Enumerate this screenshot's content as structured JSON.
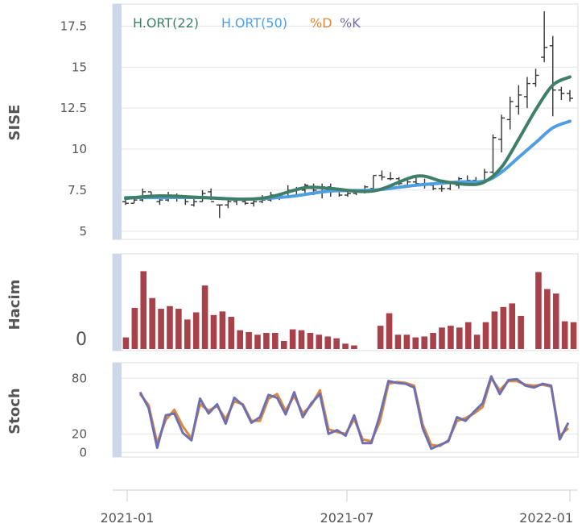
{
  "chart_data": {
    "type": "line",
    "x_ticks": [
      "2021-01",
      "2021-07",
      "2022-01"
    ],
    "colors": {
      "ort22": "#3f7f6a",
      "ort50": "#4f9ee0",
      "d": "#d9893f",
      "k": "#6f6fb0",
      "bars": "#a8424a",
      "price": "#333333",
      "panel_strip": "#ccd7ea",
      "grid": "#e3e3e3"
    },
    "panels": [
      {
        "id": "price",
        "ylabel": "SISE",
        "ylim": [
          4.5,
          18.5
        ],
        "yticks": [
          5,
          7.5,
          10,
          12.5,
          15,
          17.5
        ],
        "ytick_labels": [
          "5",
          "7.5",
          "10",
          "12.5",
          "15",
          "17.5"
        ],
        "legend": [
          "H.ORT(22)",
          "H.ORT(50)",
          "%D",
          "%K"
        ],
        "ohlc_week": [
          1,
          2,
          3,
          4,
          5,
          6,
          7,
          8,
          9,
          10,
          11,
          12,
          13,
          14,
          15,
          16,
          17,
          18,
          19,
          20,
          21,
          22,
          23,
          24,
          25,
          26,
          27,
          28,
          29,
          30,
          31,
          32,
          33,
          34,
          35,
          36,
          37,
          38,
          39,
          40,
          41,
          42,
          43,
          44,
          45,
          46,
          47,
          48,
          49,
          50,
          51,
          52,
          53
        ],
        "ohlc_high": [
          6.9,
          7.1,
          7.6,
          7.4,
          7.0,
          7.4,
          7.3,
          7.2,
          7.0,
          7.5,
          7.6,
          6.6,
          7.0,
          7.0,
          6.9,
          6.9,
          7.2,
          7.4,
          7.3,
          7.8,
          7.7,
          7.9,
          7.9,
          7.9,
          7.9,
          7.6,
          7.4,
          7.5,
          7.8,
          8.4,
          8.7,
          8.6,
          8.3,
          8.2,
          8.3,
          8.2,
          7.9,
          7.8,
          8.0,
          8.3,
          8.4,
          8.3,
          8.8,
          10.9,
          12.1,
          13.2,
          13.9,
          14.4,
          14.9,
          18.4,
          16.9,
          13.8,
          13.6
        ],
        "ohlc_low": [
          6.6,
          6.7,
          6.8,
          7.0,
          6.6,
          6.8,
          6.8,
          6.6,
          6.5,
          6.8,
          6.9,
          5.8,
          6.4,
          6.6,
          6.6,
          6.5,
          6.7,
          6.8,
          6.9,
          7.0,
          7.1,
          7.3,
          7.2,
          7.0,
          7.1,
          7.1,
          7.1,
          7.2,
          7.3,
          7.4,
          8.1,
          8.1,
          7.8,
          7.7,
          7.8,
          7.6,
          7.5,
          7.4,
          7.5,
          7.6,
          7.9,
          7.8,
          8.0,
          8.5,
          9.8,
          11.2,
          12.1,
          12.5,
          13.8,
          15.3,
          12.0,
          13.0,
          12.9
        ],
        "ohlc_open": [
          6.8,
          6.7,
          6.9,
          7.4,
          6.8,
          6.9,
          7.2,
          7.0,
          6.6,
          6.8,
          7.4,
          6.6,
          6.6,
          6.8,
          6.8,
          6.7,
          6.8,
          6.9,
          7.1,
          7.1,
          7.5,
          7.5,
          7.6,
          7.4,
          7.7,
          7.5,
          7.2,
          7.3,
          7.4,
          7.6,
          8.4,
          8.2,
          8.2,
          7.8,
          8.0,
          7.9,
          7.8,
          7.6,
          7.6,
          7.8,
          8.0,
          8.1,
          8.0,
          8.6,
          10.6,
          11.8,
          12.6,
          13.2,
          14.0,
          15.6,
          16.3,
          13.6,
          13.4
        ],
        "ohlc_close": [
          6.7,
          6.9,
          7.4,
          7.1,
          6.9,
          7.2,
          7.1,
          6.8,
          6.8,
          7.3,
          6.8,
          6.6,
          6.8,
          6.9,
          6.7,
          6.8,
          6.9,
          7.2,
          7.2,
          7.5,
          7.6,
          7.8,
          7.5,
          7.7,
          7.4,
          7.2,
          7.3,
          7.4,
          7.7,
          8.4,
          8.3,
          8.2,
          7.9,
          8.0,
          7.9,
          7.8,
          7.6,
          7.6,
          7.9,
          8.2,
          8.1,
          8.0,
          8.6,
          10.7,
          11.9,
          12.9,
          13.3,
          14.0,
          14.5,
          16.2,
          13.6,
          13.4,
          13.1
        ],
        "ort22_week": [
          1,
          5,
          10,
          15,
          18,
          22,
          25,
          30,
          35,
          38,
          41,
          43,
          45,
          47,
          49,
          51,
          53
        ],
        "ort22_val": [
          7.0,
          7.15,
          7.05,
          6.95,
          7.1,
          7.65,
          7.6,
          7.45,
          8.35,
          8.05,
          7.85,
          8.0,
          8.9,
          10.6,
          12.4,
          13.9,
          14.4
        ],
        "ort50_week": [
          1,
          5,
          10,
          15,
          20,
          25,
          30,
          35,
          40,
          43,
          45,
          47,
          49,
          51,
          53
        ],
        "ort50_val": [
          7.05,
          7.05,
          7.05,
          6.95,
          7.1,
          7.45,
          7.5,
          7.8,
          8.0,
          8.05,
          8.6,
          9.5,
          10.4,
          11.3,
          11.7
        ],
        "grid": true
      },
      {
        "id": "volume",
        "ylabel": "Hacim",
        "ytick_labels": [
          "0"
        ],
        "volume_week": [
          1,
          2,
          3,
          4,
          5,
          6,
          7,
          8,
          9,
          10,
          11,
          12,
          13,
          14,
          15,
          16,
          17,
          18,
          19,
          20,
          21,
          22,
          23,
          24,
          25,
          26,
          27,
          28,
          29,
          30,
          31,
          32,
          33,
          34,
          35,
          36,
          37,
          38,
          39,
          40,
          41,
          42,
          43,
          44,
          45,
          46,
          47,
          48,
          49,
          50,
          51,
          52,
          53
        ],
        "volume_val": [
          0.13,
          0.46,
          0.87,
          0.57,
          0.45,
          0.48,
          0.45,
          0.33,
          0.41,
          0.71,
          0.38,
          0.42,
          0.36,
          0.21,
          0.19,
          0.16,
          0.18,
          0.18,
          0.09,
          0.22,
          0.21,
          0.18,
          0.16,
          0.14,
          0.12,
          0.06,
          0.04,
          0.26,
          0.4,
          0.16,
          0.16,
          0.13,
          0.14,
          0.18,
          0.24,
          0.26,
          0.24,
          0.3,
          0.16,
          0.3,
          0.42,
          0.47,
          0.51,
          0.37,
          0.86,
          0.67,
          0.62,
          0.31,
          0.3
        ],
        "volume_positions": [
          1,
          2,
          3,
          4,
          5,
          6,
          7,
          8,
          9,
          10,
          11,
          12,
          13,
          14,
          15,
          16,
          17,
          18,
          19,
          20,
          21,
          22,
          23,
          24,
          25,
          26,
          27,
          30,
          31,
          32,
          33,
          34,
          35,
          36,
          37,
          38,
          39,
          40,
          41,
          42,
          43,
          44,
          45,
          46,
          48,
          49,
          50,
          51,
          52
        ],
        "ylim": [
          0,
          1
        ]
      },
      {
        "id": "stoch",
        "ylabel": "Stoch",
        "ylim": [
          -5,
          95
        ],
        "yticks": [
          0,
          20,
          80
        ],
        "ytick_labels": [
          "0",
          "20",
          "80"
        ],
        "stoch_week": [
          1,
          2,
          3,
          4,
          5,
          6,
          7,
          8,
          9,
          10,
          11,
          12,
          13,
          14,
          15,
          16,
          17,
          18,
          19,
          20,
          21,
          22,
          23,
          24,
          25,
          26,
          27,
          28,
          29,
          30,
          31,
          32,
          33,
          34,
          35,
          36,
          37,
          38,
          39,
          40,
          41,
          42,
          43,
          44,
          45,
          46,
          47,
          48,
          49,
          50,
          51,
          52,
          53
        ],
        "k_val": [
          65,
          48,
          5,
          40,
          42,
          21,
          13,
          58,
          42,
          52,
          31,
          59,
          51,
          32,
          38,
          62,
          59,
          41,
          65,
          38,
          53,
          63,
          20,
          24,
          18,
          40,
          10,
          10,
          40,
          77,
          75,
          74,
          70,
          26,
          4,
          8,
          12,
          38,
          34,
          44,
          53,
          82,
          63,
          78,
          79,
          72,
          70,
          74,
          72,
          14,
          32
        ],
        "d_val": [
          63,
          51,
          10,
          35,
          46,
          28,
          15,
          52,
          45,
          50,
          36,
          55,
          52,
          34,
          34,
          58,
          63,
          45,
          61,
          42,
          51,
          67,
          25,
          22,
          20,
          36,
          14,
          12,
          33,
          74,
          76,
          75,
          72,
          30,
          8,
          7,
          13,
          34,
          37,
          42,
          49,
          80,
          67,
          77,
          77,
          73,
          72,
          73,
          71,
          18,
          26
        ],
        "k_weeks": [
          1,
          2,
          3,
          4,
          5,
          6,
          7,
          8,
          9,
          10,
          11,
          12,
          13,
          14,
          15,
          16,
          17,
          18,
          19,
          20,
          21,
          22,
          23,
          24,
          25,
          26,
          27,
          28,
          29,
          30,
          31,
          32,
          33,
          34,
          35,
          36,
          37,
          38,
          39,
          40,
          41,
          42,
          43,
          44,
          45,
          46,
          47,
          48,
          49,
          50,
          51
        ],
        "grid": true
      }
    ]
  }
}
